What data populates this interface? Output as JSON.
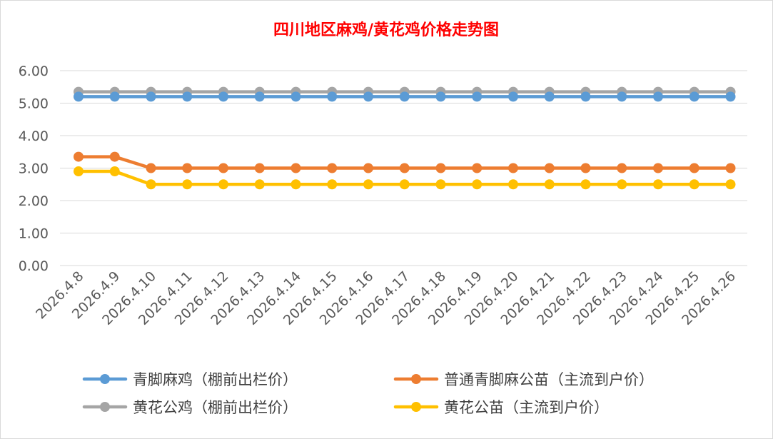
{
  "chart_data": {
    "type": "line",
    "title": "四川地区麻鸡/黄花鸡价格走势图",
    "xlabel": "",
    "ylabel": "",
    "ylim": [
      0,
      6
    ],
    "yticks": [
      "0.00",
      "1.00",
      "2.00",
      "3.00",
      "4.00",
      "5.00",
      "6.00"
    ],
    "categories": [
      "2026.4.8",
      "2026.4.9",
      "2026.4.10",
      "2026.4.11",
      "2026.4.12",
      "2026.4.13",
      "2026.4.14",
      "2026.4.15",
      "2026.4.16",
      "2026.4.17",
      "2026.4.18",
      "2026.4.19",
      "2026.4.20",
      "2026.4.21",
      "2026.4.22",
      "2026.4.23",
      "2026.4.24",
      "2026.4.25",
      "2026.4.26"
    ],
    "grid": true,
    "legend_placement": "bottom",
    "series": [
      {
        "name": "青脚麻鸡（棚前出栏价）",
        "color": "#5b9bd5",
        "values": [
          5.2,
          5.2,
          5.2,
          5.2,
          5.2,
          5.2,
          5.2,
          5.2,
          5.2,
          5.2,
          5.2,
          5.2,
          5.2,
          5.2,
          5.2,
          5.2,
          5.2,
          5.2,
          5.2
        ]
      },
      {
        "name": "普通青脚麻公苗（主流到户价）",
        "color": "#ed7d31",
        "values": [
          3.35,
          3.35,
          3.0,
          3.0,
          3.0,
          3.0,
          3.0,
          3.0,
          3.0,
          3.0,
          3.0,
          3.0,
          3.0,
          3.0,
          3.0,
          3.0,
          3.0,
          3.0,
          3.0
        ]
      },
      {
        "name": "黄花公鸡（棚前出栏价）",
        "color": "#a5a5a5",
        "values": [
          5.35,
          5.35,
          5.35,
          5.35,
          5.35,
          5.35,
          5.35,
          5.35,
          5.35,
          5.35,
          5.35,
          5.35,
          5.35,
          5.35,
          5.35,
          5.35,
          5.35,
          5.35,
          5.35
        ]
      },
      {
        "name": "黄花公苗（主流到户价）",
        "color": "#ffc000",
        "values": [
          2.9,
          2.9,
          2.5,
          2.5,
          2.5,
          2.5,
          2.5,
          2.5,
          2.5,
          2.5,
          2.5,
          2.5,
          2.5,
          2.5,
          2.5,
          2.5,
          2.5,
          2.5,
          2.5
        ]
      }
    ],
    "draw_order": [
      2,
      0,
      1,
      3
    ],
    "title_color": "#ff0000",
    "grid_color": "#d9d9d9",
    "tick_label_color": "#595959"
  }
}
